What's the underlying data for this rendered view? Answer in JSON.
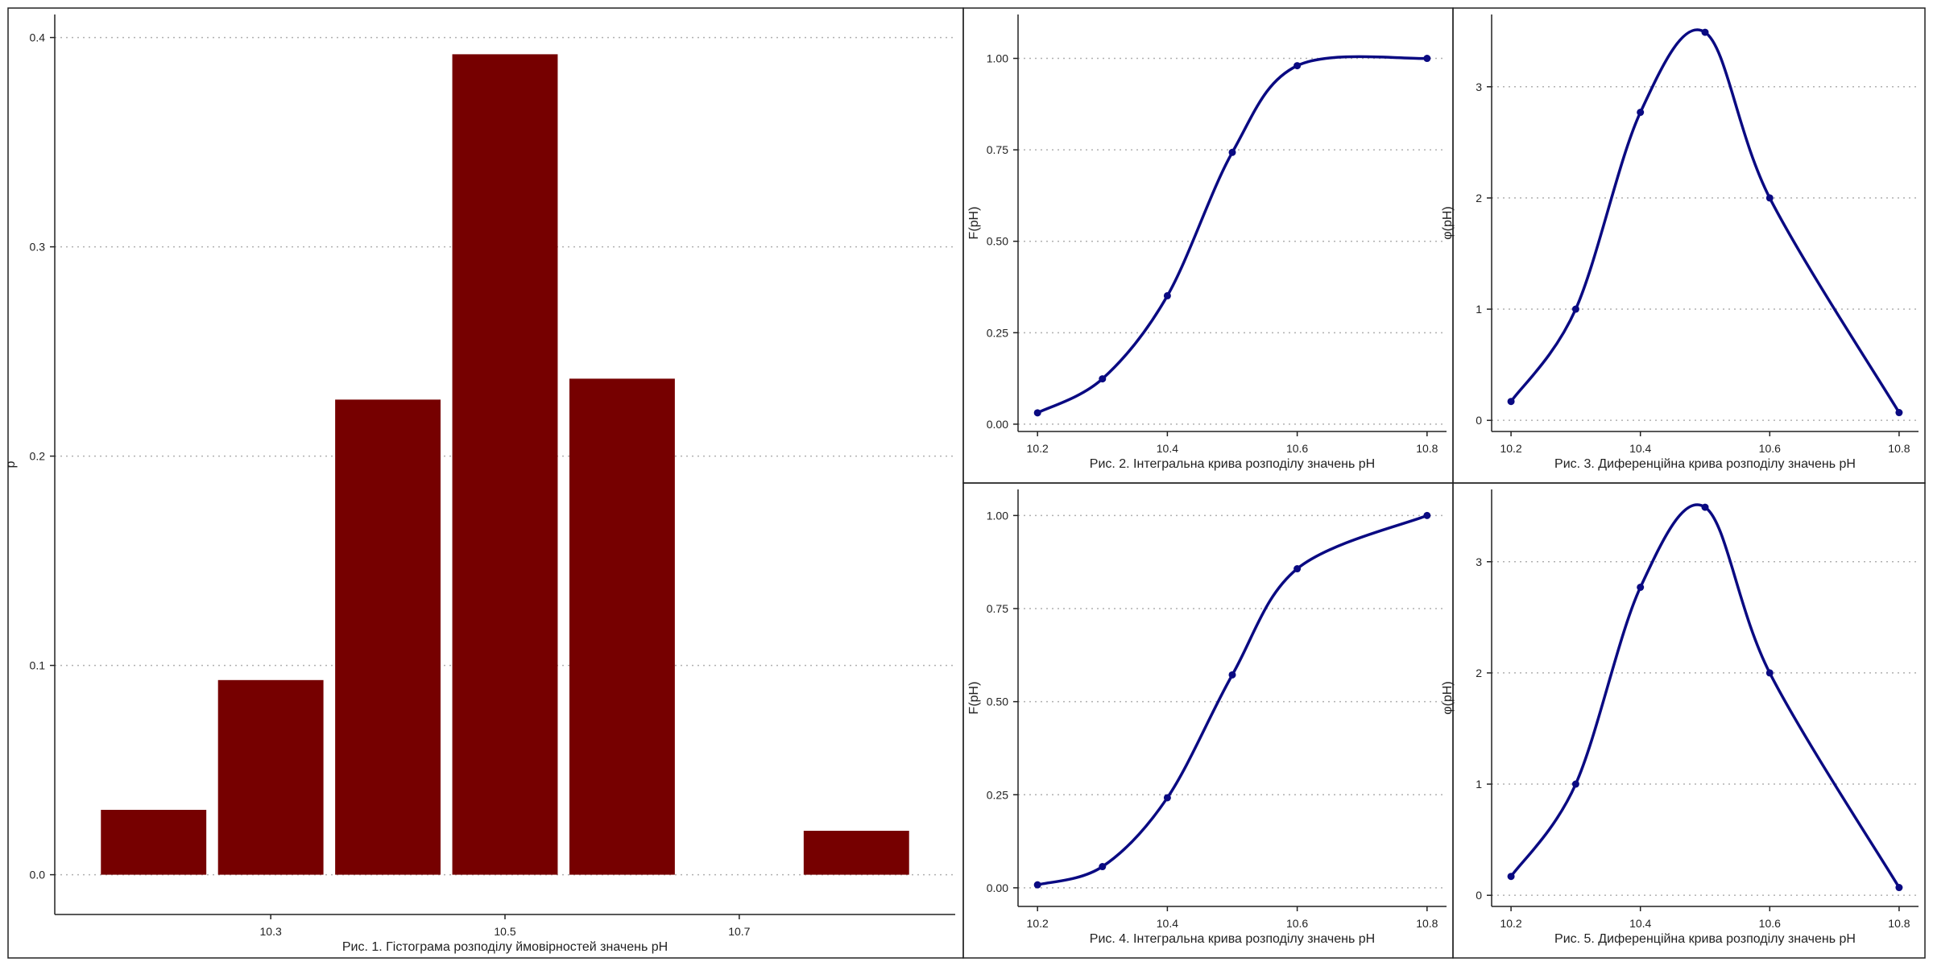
{
  "colors": {
    "bar_fill": "#760000",
    "line": "#0a0a82",
    "grid": "#b0b0b0",
    "frame": "#222222"
  },
  "chart_data": [
    {
      "type": "bar",
      "xlabel": "Рис. 1. Гістограма розподілу ймовірностей значень pH",
      "ylabel": "p",
      "categories": [
        10.2,
        10.3,
        10.4,
        10.5,
        10.6,
        10.7,
        10.8
      ],
      "values": [
        0.031,
        0.093,
        0.227,
        0.392,
        0.237,
        0,
        0.021
      ],
      "x_ticks": [
        "10.3",
        "10.5",
        "10.7"
      ],
      "y_ticks": [
        "0.0",
        "0.1",
        "0.2",
        "0.3",
        "0.4"
      ],
      "ylim": [
        -0.019,
        0.411
      ],
      "grid": "horizontal dotted"
    },
    {
      "type": "line",
      "xlabel": "Рис. 2. Інтегральна крива розподілу значень pH",
      "ylabel": "F(pH)",
      "x": [
        10.2,
        10.3,
        10.4,
        10.5,
        10.6,
        10.8
      ],
      "y": [
        0.031,
        0.124,
        0.351,
        0.743,
        0.98,
        1.0
      ],
      "x_ticks": [
        "10.2",
        "10.4",
        "10.6",
        "10.8"
      ],
      "y_ticks": [
        "0.00",
        "0.25",
        "0.50",
        "0.75",
        "1.00"
      ],
      "xlim": [
        10.17,
        10.83
      ],
      "ylim": [
        -0.02,
        1.12
      ],
      "grid": "horizontal dotted"
    },
    {
      "type": "line",
      "xlabel": "Рис. 3. Диференційна крива розподілу значень pH",
      "ylabel": "φ(pH)",
      "x": [
        10.2,
        10.3,
        10.4,
        10.5,
        10.6,
        10.8
      ],
      "y": [
        0.17,
        1.0,
        2.77,
        3.49,
        2.0,
        0.07
      ],
      "x_ticks": [
        "10.2",
        "10.4",
        "10.6",
        "10.8"
      ],
      "y_ticks": [
        "0",
        "1",
        "2",
        "3"
      ],
      "xlim": [
        10.17,
        10.83
      ],
      "ylim": [
        -0.1,
        3.65
      ],
      "grid": "horizontal dotted"
    },
    {
      "type": "line",
      "xlabel": "Рис. 4. Інтегральна крива розподілу значень pH",
      "ylabel": "F(pH)",
      "x": [
        10.2,
        10.3,
        10.4,
        10.5,
        10.6,
        10.8
      ],
      "y": [
        0.008,
        0.057,
        0.242,
        0.572,
        0.857,
        1.0
      ],
      "x_ticks": [
        "10.2",
        "10.4",
        "10.6",
        "10.8"
      ],
      "y_ticks": [
        "0.00",
        "0.25",
        "0.50",
        "0.75",
        "1.00"
      ],
      "xlim": [
        10.17,
        10.83
      ],
      "ylim": [
        -0.05,
        1.07
      ],
      "grid": "horizontal dotted"
    },
    {
      "type": "line",
      "xlabel": "Рис. 5. Диференційна крива розподілу значень pH",
      "ylabel": "φ(pH)",
      "x": [
        10.2,
        10.3,
        10.4,
        10.5,
        10.6,
        10.8
      ],
      "y": [
        0.17,
        1.0,
        2.77,
        3.49,
        2.0,
        0.07
      ],
      "x_ticks": [
        "10.2",
        "10.4",
        "10.6",
        "10.8"
      ],
      "y_ticks": [
        "0",
        "1",
        "2",
        "3"
      ],
      "xlim": [
        10.17,
        10.83
      ],
      "ylim": [
        -0.1,
        3.65
      ],
      "grid": "horizontal dotted"
    }
  ]
}
